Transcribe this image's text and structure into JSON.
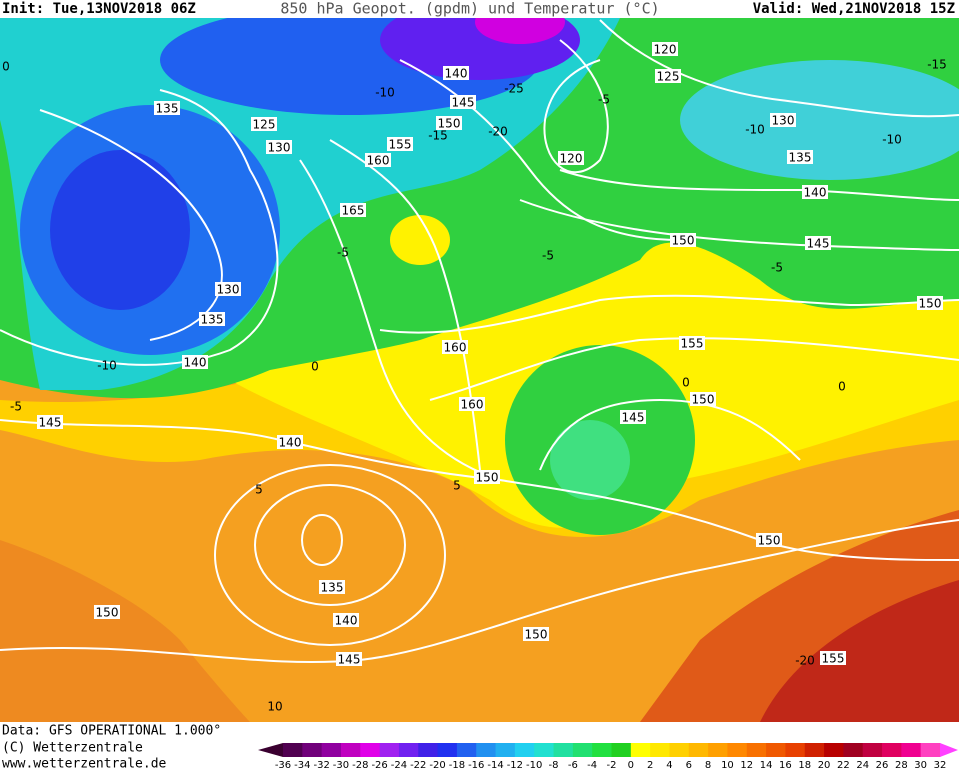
{
  "header": {
    "init": "Init: Tue,13NOV2018 06Z",
    "title": "850 hPa Geopot. (gpdm) und Temperatur (°C)",
    "valid": "Valid: Wed,21NOV2018 15Z"
  },
  "footer": {
    "data": "Data: GFS OPERATIONAL 1.000°",
    "copyright": "(C) Wetterzentrale",
    "url": "www.wetterzentrale.de"
  },
  "colorbar": {
    "labels": [
      -36,
      -34,
      -32,
      -30,
      -28,
      -26,
      -24,
      -22,
      -20,
      -18,
      -16,
      -14,
      -12,
      -10,
      -8,
      -6,
      -4,
      -2,
      0,
      2,
      4,
      6,
      8,
      10,
      12,
      14,
      16,
      18,
      20,
      22,
      24,
      26,
      28,
      30,
      32
    ],
    "colors": [
      "#3a0030",
      "#500050",
      "#70007a",
      "#9000a0",
      "#c000c0",
      "#e000e8",
      "#a020f0",
      "#7020f0",
      "#4020e8",
      "#2030f0",
      "#2060f0",
      "#2090f0",
      "#20b0f0",
      "#20d0f0",
      "#20e0d0",
      "#20e0a0",
      "#20e070",
      "#20e040",
      "#20d020",
      "#ffff00",
      "#ffe800",
      "#ffd000",
      "#ffb800",
      "#ffa000",
      "#ff8800",
      "#f87000",
      "#f05800",
      "#e84000",
      "#d02000",
      "#b80000",
      "#a00020",
      "#c00040",
      "#e00060",
      "#f00090",
      "#ff40c0",
      "#ff40ff"
    ]
  },
  "geopotential_labels": [
    "120",
    "125",
    "140",
    "145",
    "135",
    "125",
    "130",
    "150",
    "155",
    "160",
    "165",
    "120",
    "130",
    "135",
    "140",
    "145",
    "150",
    "150",
    "130",
    "135",
    "140",
    "160",
    "155",
    "150",
    "145",
    "160",
    "150",
    "140",
    "145",
    "150",
    "135",
    "140",
    "145",
    "150",
    "150",
    "155"
  ],
  "temperature_labels": [
    "-15",
    "-10",
    "-10",
    "-5",
    "-25",
    "-20",
    "-10",
    "-15",
    "-5",
    "-5",
    "-5",
    "0",
    "0",
    "-5",
    "-10",
    "5",
    "5",
    "-20",
    "10",
    "0",
    "0"
  ]
}
